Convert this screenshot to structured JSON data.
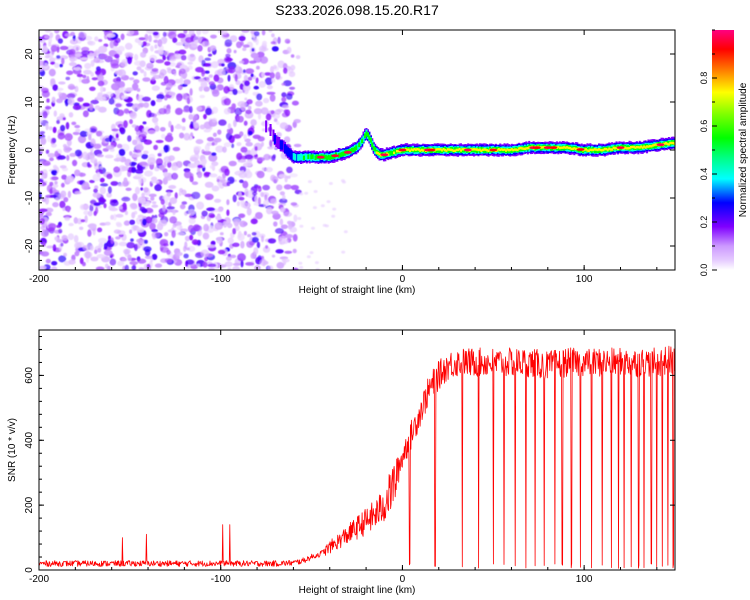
{
  "title": "S233.2026.098.15.20.R17",
  "chart_data": [
    {
      "type": "heatmap",
      "xlabel": "Height of straight line (km)",
      "ylabel": "Frequency (Hz)",
      "xlim": [
        -200,
        150
      ],
      "ylim": [
        -25,
        25
      ],
      "xticks": [
        -200,
        -100,
        0,
        100
      ],
      "yticks": [
        -20,
        -10,
        0,
        10,
        20
      ],
      "colorbar": {
        "label": "Normalized spectral amplitude",
        "range": [
          0.0,
          1.0
        ],
        "ticks": [
          0.0,
          0.2,
          0.4,
          0.6,
          0.8
        ],
        "tick_labels": [
          "0.0",
          "0.2",
          "0.4",
          "0.6",
          "0.8"
        ],
        "colormap": [
          "#ffffff",
          "#e6ccff",
          "#cc99ff",
          "#8000ff",
          "#0000ff",
          "#00ffff",
          "#00ff80",
          "#00ff00",
          "#80ff00",
          "#ffff00",
          "#ff8000",
          "#ff0000",
          "#ff0080"
        ]
      },
      "noise_region_x": [
        -200,
        -57
      ],
      "ridge": {
        "x": [
          -75,
          -72,
          -70,
          -65,
          -60,
          -55,
          -50,
          -45,
          -40,
          -35,
          -30,
          -25,
          -22,
          -20,
          -18,
          -16,
          -14,
          -12,
          -10,
          -5,
          0,
          10,
          20,
          30,
          40,
          50,
          60,
          70,
          80,
          90,
          100,
          110,
          120,
          130,
          140,
          150
        ],
        "freq_hz": [
          5,
          4,
          2,
          0.5,
          -1.5,
          -1.5,
          -1.5,
          -1.5,
          -1.5,
          -1,
          -0.5,
          0.5,
          2,
          3.5,
          2.5,
          0.5,
          -0.5,
          -1,
          -1,
          -0.5,
          0,
          0,
          0,
          0,
          0,
          0,
          0,
          0.5,
          0.5,
          0.5,
          0,
          0,
          0.5,
          0.5,
          1,
          1.5
        ],
        "peak_amplitude": [
          0.2,
          0.2,
          0.25,
          0.3,
          0.35,
          0.5,
          0.55,
          0.6,
          0.65,
          0.55,
          0.6,
          0.55,
          0.5,
          0.55,
          0.5,
          0.6,
          0.75,
          0.85,
          0.7,
          0.75,
          0.8,
          0.85,
          0.9,
          0.85,
          0.8,
          0.85,
          0.8,
          0.85,
          0.9,
          0.85,
          0.85,
          0.9,
          0.85,
          0.8,
          0.85,
          0.8
        ]
      }
    },
    {
      "type": "line",
      "xlabel": "Height of straight line (km)",
      "ylabel": "SNR (10 * v/v)",
      "xlim": [
        -200,
        150
      ],
      "ylim": [
        0,
        740
      ],
      "xticks": [
        -200,
        -100,
        0,
        100
      ],
      "yticks": [
        0,
        200,
        400,
        600
      ],
      "color": "#ff0000",
      "series": [
        {
          "name": "SNR",
          "x": [
            -200,
            -190,
            -180,
            -170,
            -160,
            -150,
            -140,
            -130,
            -120,
            -110,
            -100,
            -90,
            -80,
            -70,
            -60,
            -55,
            -50,
            -45,
            -40,
            -35,
            -30,
            -25,
            -20,
            -15,
            -10,
            -5,
            0,
            5,
            10,
            15,
            20,
            25,
            30,
            35,
            40,
            50,
            60,
            70,
            80,
            90,
            100,
            110,
            120,
            130,
            140,
            150
          ],
          "values": [
            20,
            20,
            20,
            20,
            20,
            20,
            20,
            20,
            20,
            20,
            20,
            20,
            20,
            20,
            22,
            28,
            40,
            50,
            70,
            90,
            110,
            130,
            150,
            170,
            200,
            260,
            350,
            420,
            490,
            560,
            600,
            630,
            640,
            640,
            640,
            640,
            640,
            640,
            630,
            640,
            640,
            640,
            640,
            640,
            640,
            650
          ]
        }
      ],
      "dropouts_x": [
        4,
        18,
        33,
        42,
        50,
        56,
        62,
        68,
        73,
        78,
        84,
        88,
        93,
        98,
        104,
        110,
        115,
        119,
        122,
        126,
        130,
        133,
        137,
        140,
        143,
        146,
        149
      ],
      "isolated_spikes": [
        {
          "x": -154,
          "value": 100
        },
        {
          "x": -141,
          "value": 110
        },
        {
          "x": -99,
          "value": 140
        },
        {
          "x": -95,
          "value": 140
        }
      ]
    }
  ]
}
